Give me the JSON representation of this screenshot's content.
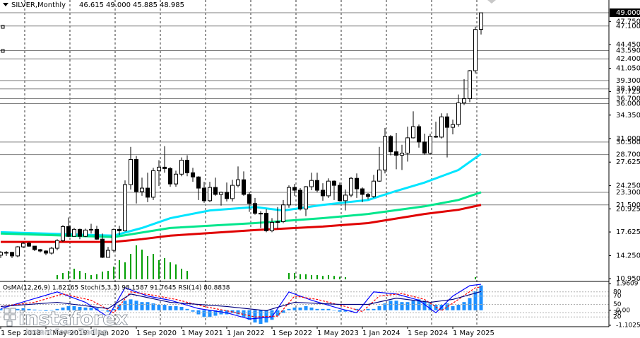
{
  "chart_data": {
    "type": "candlestick",
    "title": "SILVER,Monthly",
    "header_labels": [
      "46.615",
      "49.000",
      "45.885",
      "48.985"
    ],
    "up_color": "#ffffff",
    "down_color": "#000000",
    "edge_color": "#000000",
    "candles": [
      [
        14.3,
        14.9,
        13.9,
        14.7
      ],
      [
        14.7,
        14.9,
        14.2,
        14.7
      ],
      [
        14.7,
        14.8,
        13.9,
        14.2
      ],
      [
        14.2,
        15.6,
        14.0,
        15.5
      ],
      [
        15.5,
        16.2,
        15.3,
        16.0
      ],
      [
        16.0,
        16.2,
        15.5,
        15.6
      ],
      [
        15.6,
        15.6,
        14.9,
        15.1
      ],
      [
        15.1,
        15.2,
        14.7,
        14.9
      ],
      [
        14.9,
        15.0,
        14.3,
        14.6
      ],
      [
        14.6,
        15.5,
        14.4,
        15.3
      ],
      [
        15.3,
        16.6,
        15.0,
        16.4
      ],
      [
        16.4,
        18.6,
        16.2,
        18.4
      ],
      [
        18.4,
        19.7,
        16.9,
        17.0
      ],
      [
        17.0,
        18.2,
        17.0,
        18.0
      ],
      [
        18.0,
        18.1,
        16.6,
        17.0
      ],
      [
        17.0,
        18.1,
        16.9,
        17.9
      ],
      [
        17.9,
        18.8,
        17.4,
        18.0
      ],
      [
        18.0,
        18.5,
        16.5,
        16.6
      ],
      [
        16.6,
        17.4,
        13.9,
        14.0
      ],
      [
        14.0,
        15.5,
        14.0,
        15.0
      ],
      [
        15.0,
        18.1,
        14.7,
        18.0
      ],
      [
        18.0,
        18.5,
        17.2,
        17.8
      ],
      [
        17.8,
        25.0,
        17.7,
        24.4
      ],
      [
        24.4,
        29.8,
        23.7,
        28.0
      ],
      [
        28.0,
        28.5,
        21.7,
        23.4
      ],
      [
        23.4,
        25.4,
        22.8,
        23.9
      ],
      [
        23.9,
        26.1,
        21.9,
        22.6
      ],
      [
        22.6,
        26.8,
        22.2,
        26.4
      ],
      [
        26.4,
        27.9,
        24.2,
        26.9
      ],
      [
        26.9,
        29.9,
        26.1,
        26.7
      ],
      [
        26.7,
        26.9,
        24.1,
        24.5
      ],
      [
        24.5,
        26.4,
        24.1,
        25.9
      ],
      [
        25.9,
        28.3,
        25.6,
        27.9
      ],
      [
        27.9,
        28.6,
        25.6,
        26.1
      ],
      [
        26.1,
        26.8,
        24.8,
        25.5
      ],
      [
        25.5,
        25.6,
        22.2,
        23.9
      ],
      [
        23.9,
        24.8,
        21.8,
        22.1
      ],
      [
        22.1,
        24.8,
        21.9,
        24.0
      ],
      [
        24.0,
        25.4,
        22.8,
        23.0
      ],
      [
        23.0,
        23.4,
        21.4,
        23.3
      ],
      [
        23.3,
        24.7,
        22.0,
        22.4
      ],
      [
        22.4,
        25.1,
        22.0,
        24.3
      ],
      [
        24.3,
        27.0,
        24.0,
        25.1
      ],
      [
        25.1,
        26.3,
        22.8,
        23.0
      ],
      [
        23.0,
        23.3,
        20.5,
        21.7
      ],
      [
        21.7,
        22.5,
        20.1,
        20.3
      ],
      [
        20.3,
        20.6,
        18.2,
        20.3
      ],
      [
        20.3,
        20.9,
        17.6,
        17.8
      ],
      [
        17.8,
        19.6,
        17.6,
        19.0
      ],
      [
        19.0,
        21.2,
        18.1,
        19.1
      ],
      [
        19.1,
        22.2,
        18.9,
        21.5
      ],
      [
        21.5,
        24.3,
        21.1,
        24.0
      ],
      [
        24.0,
        24.5,
        22.8,
        23.6
      ],
      [
        23.6,
        23.9,
        20.7,
        20.9
      ],
      [
        20.9,
        24.2,
        19.9,
        24.1
      ],
      [
        24.1,
        26.1,
        23.6,
        25.0
      ],
      [
        25.0,
        26.1,
        23.3,
        23.6
      ],
      [
        23.6,
        24.6,
        22.1,
        22.8
      ],
      [
        22.8,
        25.3,
        22.5,
        24.9
      ],
      [
        24.9,
        25.0,
        22.2,
        24.3
      ],
      [
        24.3,
        24.7,
        22.0,
        22.1
      ],
      [
        22.1,
        23.7,
        20.7,
        22.9
      ],
      [
        22.9,
        25.5,
        22.6,
        25.3
      ],
      [
        25.3,
        26.0,
        22.5,
        23.8
      ],
      [
        23.8,
        24.0,
        21.9,
        23.0
      ],
      [
        23.0,
        23.2,
        22.3,
        22.7
      ],
      [
        22.7,
        25.8,
        22.5,
        24.9
      ],
      [
        24.9,
        29.8,
        24.8,
        26.5
      ],
      [
        26.5,
        32.5,
        26.0,
        31.3
      ],
      [
        31.3,
        31.5,
        28.6,
        29.1
      ],
      [
        29.1,
        31.8,
        26.6,
        28.6
      ],
      [
        28.6,
        30.1,
        26.5,
        28.9
      ],
      [
        28.9,
        32.7,
        27.7,
        31.1
      ],
      [
        31.1,
        34.9,
        31.0,
        32.7
      ],
      [
        32.7,
        33.0,
        29.7,
        30.5
      ],
      [
        30.5,
        31.7,
        28.7,
        28.9
      ],
      [
        28.9,
        31.7,
        28.7,
        31.3
      ],
      [
        31.3,
        33.4,
        31.1,
        31.2
      ],
      [
        31.2,
        34.6,
        31.0,
        34.1
      ],
      [
        34.1,
        34.6,
        28.3,
        32.6
      ],
      [
        32.6,
        33.7,
        31.6,
        33.0
      ],
      [
        33.0,
        37.3,
        32.7,
        36.1
      ],
      [
        36.1,
        39.5,
        35.8,
        36.7
      ],
      [
        36.7,
        40.8,
        36.2,
        40.7
      ],
      [
        40.7,
        47.0,
        40.3,
        46.6
      ],
      [
        46.615,
        49.0,
        45.885,
        48.985
      ]
    ],
    "ylim": [
      10.65,
      50.82
    ],
    "yticks": [
      {
        "value": 47.75,
        "label": "47.750"
      },
      {
        "value": 44.45,
        "label": "44.450"
      },
      {
        "value": 41.05,
        "label": "41.050"
      },
      {
        "value": 37.725,
        "label": "37.725"
      },
      {
        "value": 34.35,
        "label": "34.350"
      },
      {
        "value": 31.0,
        "label": "31.000"
      },
      {
        "value": 27.625,
        "label": "27.625"
      },
      {
        "value": 24.25,
        "label": "24.250"
      },
      {
        "value": 20.925,
        "label": "20.925"
      },
      {
        "value": 17.625,
        "label": "17.625"
      },
      {
        "value": 14.25,
        "label": "14.250"
      },
      {
        "value": 10.95,
        "label": "10.950"
      }
    ],
    "levels": [
      {
        "value": 49.0,
        "label": "49.000"
      },
      {
        "value": 47.1,
        "label": "47.100"
      },
      {
        "value": 43.59,
        "label": "43.590"
      },
      {
        "value": 42.4,
        "label": "42.400"
      },
      {
        "value": 39.3,
        "label": "39.300"
      },
      {
        "value": 38.1,
        "label": "38.100"
      },
      {
        "value": 36.7,
        "label": "36.700"
      },
      {
        "value": 36.0,
        "label": "36.000"
      },
      {
        "value": 30.5,
        "label": "30.500"
      },
      {
        "value": 28.7,
        "label": "28.700"
      },
      {
        "value": 23.3,
        "label": "23.300"
      },
      {
        "value": 21.5,
        "label": "21.500"
      }
    ],
    "xticks": [
      {
        "value": 0,
        "label": "1 Sep 2018"
      },
      {
        "value": 8,
        "label": "1 May 2019"
      },
      {
        "value": 16,
        "label": "1 Jan 2020"
      },
      {
        "value": 24,
        "label": "1 Sep 2020"
      },
      {
        "value": 32,
        "label": "1 May 2021"
      },
      {
        "value": 40,
        "label": "1 Jan 2022"
      },
      {
        "value": 48,
        "label": "1 Sep 2022"
      },
      {
        "value": 56,
        "label": "1 May 2023"
      },
      {
        "value": 64,
        "label": "1 Jan 2024"
      },
      {
        "value": 72,
        "label": "1 Sep 2024"
      },
      {
        "value": 80,
        "label": "1 May 2025"
      }
    ],
    "grid": "vertical",
    "moving_averages": [
      {
        "color": "#00e5ff",
        "x": [
          0,
          20,
          25,
          30,
          37,
          45,
          50,
          57,
          65,
          70,
          75,
          81,
          85
        ],
        "values": [
          17.6,
          17.1,
          18.2,
          19.6,
          20.7,
          21.2,
          20.7,
          21.5,
          22.2,
          23.5,
          24.7,
          26.5,
          28.8
        ]
      },
      {
        "color": "#00e68c",
        "x": [
          0,
          20,
          30,
          45,
          57,
          65,
          75,
          81,
          85
        ],
        "values": [
          17.4,
          16.9,
          18.2,
          18.9,
          19.6,
          20.2,
          21.3,
          22.2,
          23.3
        ]
      },
      {
        "color": "#e00000",
        "x": [
          0,
          20,
          25,
          30,
          45,
          57,
          65,
          75,
          81,
          85
        ],
        "values": [
          16.2,
          16.2,
          16.6,
          17.1,
          17.9,
          18.4,
          18.9,
          20.2,
          20.8,
          21.5
        ]
      }
    ],
    "volume": {
      "color": "#00a000",
      "values": [
        0,
        0,
        0,
        0,
        0,
        0,
        0,
        0,
        0,
        0,
        10,
        15,
        20,
        25,
        20,
        15,
        10,
        12,
        18,
        20,
        30,
        45,
        40,
        60,
        80,
        70,
        55,
        60,
        45,
        50,
        40,
        35,
        25,
        20,
        0,
        0,
        0,
        0,
        0,
        0,
        0,
        0,
        0,
        0,
        0,
        0,
        0,
        0,
        0,
        0,
        0,
        15,
        15,
        12,
        12,
        10,
        10,
        8,
        10,
        8,
        6,
        5,
        0,
        0,
        0,
        0,
        0,
        0,
        0,
        0,
        0,
        0,
        0,
        0,
        0,
        0,
        0,
        0,
        0,
        0,
        0,
        0,
        0,
        0,
        5,
        0
      ]
    },
    "sub": {
      "legend": "OsMA(12,26,9) 1.82165  Stoch(5,3,3) 98.1587 91.7645  RSI(14) 80.8838",
      "ylim": [
        0,
        100
      ],
      "yticks": [
        80,
        70,
        50,
        30,
        20
      ],
      "osma_lim": [
        -1.10253,
        1.9609
      ],
      "osma_ticks": [
        {
          "value": 1.9609,
          "label": "1.9609"
        },
        {
          "value": 0,
          "label": "0.00"
        },
        {
          "value": -1.10253,
          "label": "-1.10253"
        }
      ],
      "osma": {
        "color": "#1e90ff",
        "values": [
          0.1,
          0.1,
          0.05,
          0.1,
          0.15,
          0.1,
          0.05,
          0.0,
          -0.05,
          0.0,
          0.1,
          0.2,
          0.3,
          0.3,
          0.25,
          0.2,
          0.2,
          0.15,
          0.0,
          -0.1,
          0.1,
          0.4,
          0.7,
          0.8,
          0.7,
          0.6,
          0.6,
          0.5,
          0.4,
          0.4,
          0.3,
          0.3,
          0.25,
          0.1,
          -0.1,
          -0.3,
          -0.5,
          -0.5,
          -0.4,
          -0.3,
          -0.3,
          -0.2,
          -0.3,
          -0.5,
          -0.7,
          -0.9,
          -1.0,
          -0.9,
          -0.7,
          -0.4,
          -0.2,
          0.1,
          0.2,
          0.2,
          0.3,
          0.2,
          0.1,
          0.1,
          0.1,
          0.0,
          -0.1,
          -0.1,
          0.0,
          0.1,
          0.0,
          0.1,
          0.1,
          0.3,
          0.5,
          0.7,
          0.7,
          0.6,
          0.6,
          0.7,
          0.8,
          0.7,
          0.5,
          0.4,
          0.4,
          0.5,
          0.3,
          0.4,
          0.6,
          0.9,
          1.4,
          1.82165
        ]
      },
      "lines": [
        {
          "color": "#0000ff",
          "dash": false,
          "x": [
            0,
            5,
            10,
            15,
            19,
            22,
            26,
            30,
            35,
            40,
            44,
            48,
            51,
            55,
            60,
            63,
            66,
            70,
            74,
            77,
            80,
            83,
            85
          ],
          "values": [
            40,
            60,
            80,
            55,
            20,
            90,
            70,
            60,
            40,
            30,
            15,
            20,
            80,
            60,
            40,
            30,
            80,
            75,
            60,
            30,
            70,
            95,
            98.1587
          ]
        },
        {
          "color": "#ff0000",
          "dash": true,
          "x": [
            0,
            6,
            11,
            16,
            20,
            23,
            27,
            31,
            36,
            41,
            45,
            49,
            52,
            56,
            61,
            64,
            67,
            71,
            75,
            78,
            81,
            84,
            85
          ],
          "values": [
            45,
            55,
            75,
            60,
            30,
            80,
            72,
            62,
            45,
            32,
            20,
            22,
            70,
            62,
            45,
            33,
            70,
            76,
            62,
            35,
            62,
            90,
            91.7645
          ]
        },
        {
          "color": "#000080",
          "dash": false,
          "x": [
            0,
            10,
            19,
            23,
            30,
            40,
            47,
            52,
            60,
            65,
            70,
            76,
            80,
            85
          ],
          "values": [
            45,
            55,
            40,
            75,
            55,
            45,
            35,
            55,
            50,
            50,
            65,
            55,
            62,
            80.8838
          ]
        }
      ]
    },
    "watermark": {
      "name": "instaforex",
      "tagline": "Instant Forex Trading"
    }
  }
}
